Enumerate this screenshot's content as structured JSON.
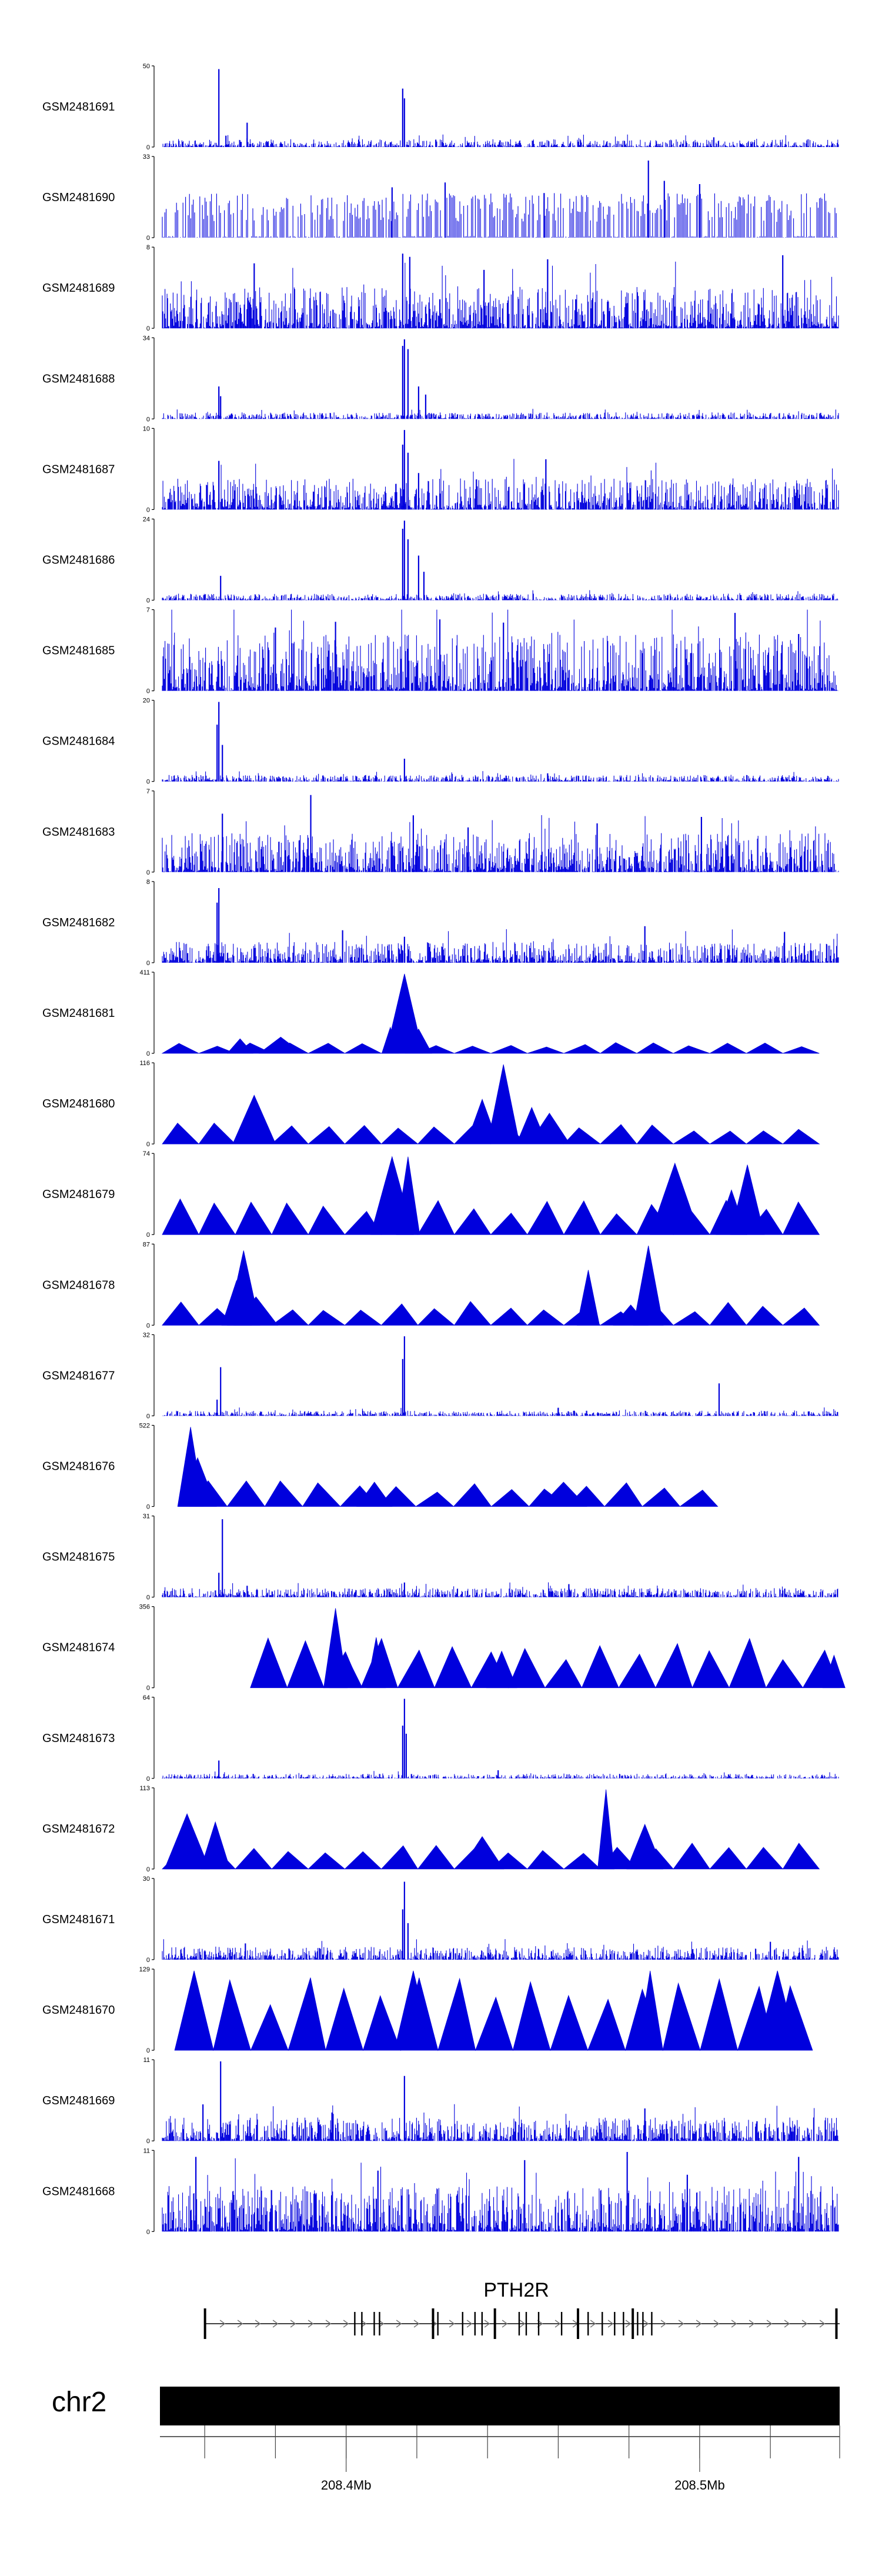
{
  "chart_data": {
    "type": "area",
    "title": "",
    "x_unit": "Mb",
    "xlim": [
      208.3539,
      208.5455
    ],
    "colors": {
      "signal": "#0000dd",
      "axis": "#000000",
      "gene": "#000000",
      "strand": "#777777"
    },
    "tracks": [
      {
        "name": "GSM2481691",
        "ymax": 50,
        "pattern": "dense",
        "noise": 0.06,
        "peaks": [
          [
            208.3699,
            0.96
          ],
          [
            208.3779,
            0.3
          ],
          [
            208.4219,
            0.72
          ],
          [
            208.4224,
            0.6
          ],
          [
            208.3719,
            0.14
          ],
          [
            208.5099,
            0.12
          ]
        ]
      },
      {
        "name": "GSM2481690",
        "ymax": 33,
        "pattern": "sparse",
        "base": 0.55,
        "peaks": [
          [
            208.4914,
            0.95
          ],
          [
            208.4959,
            0.7
          ],
          [
            208.4339,
            0.68
          ],
          [
            208.5059,
            0.66
          ],
          [
            208.4189,
            0.62
          ],
          [
            208.4619,
            0.55
          ]
        ]
      },
      {
        "name": "GSM2481689",
        "ymax": 8,
        "pattern": "dense",
        "noise": 0.32,
        "peaks": [
          [
            208.4219,
            0.92
          ],
          [
            208.4239,
            0.88
          ],
          [
            208.4629,
            0.85
          ],
          [
            208.5294,
            0.9
          ],
          [
            208.3799,
            0.8
          ],
          [
            208.4449,
            0.72
          ]
        ]
      },
      {
        "name": "GSM2481688",
        "ymax": 34,
        "pattern": "dense",
        "noise": 0.05,
        "peaks": [
          [
            208.4224,
            0.98
          ],
          [
            208.4219,
            0.9
          ],
          [
            208.4234,
            0.86
          ],
          [
            208.4264,
            0.4
          ],
          [
            208.4284,
            0.3
          ],
          [
            208.3699,
            0.4
          ],
          [
            208.3704,
            0.28
          ]
        ]
      },
      {
        "name": "GSM2481687",
        "ymax": 10,
        "pattern": "dense",
        "noise": 0.24,
        "peaks": [
          [
            208.4224,
            0.98
          ],
          [
            208.4219,
            0.8
          ],
          [
            208.4234,
            0.7
          ],
          [
            208.4264,
            0.45
          ],
          [
            208.4624,
            0.62
          ],
          [
            208.3699,
            0.6
          ]
        ]
      },
      {
        "name": "GSM2481686",
        "ymax": 24,
        "pattern": "dense",
        "noise": 0.05,
        "peaks": [
          [
            208.4224,
            0.98
          ],
          [
            208.4219,
            0.88
          ],
          [
            208.4234,
            0.75
          ],
          [
            208.4264,
            0.55
          ],
          [
            208.4279,
            0.35
          ],
          [
            208.3704,
            0.3
          ]
        ]
      },
      {
        "name": "GSM2481685",
        "ymax": 7,
        "pattern": "dense",
        "noise": 0.45,
        "peaks": [
          [
            208.5159,
            0.96
          ],
          [
            208.4324,
            0.88
          ],
          [
            208.4029,
            0.85
          ],
          [
            208.4504,
            0.84
          ],
          [
            208.3859,
            0.78
          ],
          [
            208.5339,
            0.7
          ]
        ]
      },
      {
        "name": "GSM2481684",
        "ymax": 20,
        "pattern": "dense",
        "noise": 0.05,
        "peaks": [
          [
            208.3699,
            0.98
          ],
          [
            208.3694,
            0.7
          ],
          [
            208.3709,
            0.45
          ],
          [
            208.4224,
            0.28
          ],
          [
            208.4629,
            0.1
          ]
        ]
      },
      {
        "name": "GSM2481683",
        "ymax": 7,
        "pattern": "dense",
        "noise": 0.3,
        "peaks": [
          [
            208.3959,
            0.95
          ],
          [
            208.3709,
            0.72
          ],
          [
            208.4249,
            0.7
          ],
          [
            208.5064,
            0.68
          ],
          [
            208.4769,
            0.6
          ],
          [
            208.4404,
            0.55
          ]
        ]
      },
      {
        "name": "GSM2481682",
        "ymax": 8,
        "pattern": "dense",
        "noise": 0.16,
        "peaks": [
          [
            208.3699,
            0.92
          ],
          [
            208.3694,
            0.74
          ],
          [
            208.4049,
            0.4
          ],
          [
            208.4904,
            0.45
          ],
          [
            208.5299,
            0.38
          ],
          [
            208.4224,
            0.32
          ]
        ]
      },
      {
        "name": "GSM2481681",
        "ymax": 411,
        "pattern": "triangles",
        "level": 0.14,
        "peaks": [
          [
            208.4224,
            0.98
          ],
          [
            208.4184,
            0.32
          ],
          [
            208.4264,
            0.3
          ],
          [
            208.3759,
            0.18
          ],
          [
            208.3874,
            0.2
          ]
        ]
      },
      {
        "name": "GSM2481680",
        "ymax": 116,
        "pattern": "triangles",
        "level": 0.28,
        "peaks": [
          [
            208.4504,
            0.98
          ],
          [
            208.4444,
            0.55
          ],
          [
            208.4584,
            0.45
          ],
          [
            208.3799,
            0.6
          ],
          [
            208.4634,
            0.38
          ]
        ]
      },
      {
        "name": "GSM2481679",
        "ymax": 74,
        "pattern": "triangles",
        "level": 0.45,
        "peaks": [
          [
            208.4189,
            0.96
          ],
          [
            208.4234,
            0.96
          ],
          [
            208.4989,
            0.88
          ],
          [
            208.5194,
            0.86
          ],
          [
            208.5149,
            0.55
          ]
        ]
      },
      {
        "name": "GSM2481678",
        "ymax": 87,
        "pattern": "triangles",
        "level": 0.3,
        "peaks": [
          [
            208.4914,
            0.98
          ],
          [
            208.3769,
            0.92
          ],
          [
            208.3749,
            0.55
          ],
          [
            208.4744,
            0.68
          ],
          [
            208.3804,
            0.35
          ],
          [
            208.4864,
            0.25
          ]
        ]
      },
      {
        "name": "GSM2481677",
        "ymax": 32,
        "pattern": "dense",
        "noise": 0.04,
        "peaks": [
          [
            208.4224,
            0.98
          ],
          [
            208.4219,
            0.7
          ],
          [
            208.3704,
            0.6
          ],
          [
            208.5114,
            0.4
          ],
          [
            208.3694,
            0.2
          ],
          [
            208.4659,
            0.1
          ]
        ]
      },
      {
        "name": "GSM2481676",
        "ymax": 522,
        "pattern": "triangles",
        "level": 0.32,
        "start": 0.04,
        "end": 0.82,
        "peaks": [
          [
            208.3619,
            0.98
          ],
          [
            208.3639,
            0.6
          ],
          [
            208.4139,
            0.3
          ],
          [
            208.4674,
            0.3
          ]
        ]
      },
      {
        "name": "GSM2481675",
        "ymax": 31,
        "pattern": "dense",
        "noise": 0.07,
        "peaks": [
          [
            208.3709,
            0.96
          ],
          [
            208.3699,
            0.3
          ],
          [
            208.3779,
            0.14
          ],
          [
            208.4224,
            0.18
          ],
          [
            208.4689,
            0.16
          ]
        ]
      },
      {
        "name": "GSM2481674",
        "ymax": 356,
        "pattern": "triangles",
        "level": 0.62,
        "start": 0.13,
        "end": 1.0,
        "peaks": [
          [
            208.4029,
            0.98
          ],
          [
            208.4059,
            0.4
          ],
          [
            208.4144,
            0.62
          ],
          [
            208.4499,
            0.45
          ],
          [
            208.5439,
            0.4
          ]
        ]
      },
      {
        "name": "GSM2481673",
        "ymax": 64,
        "pattern": "dense",
        "noise": 0.035,
        "peaks": [
          [
            208.4224,
            0.98
          ],
          [
            208.4219,
            0.65
          ],
          [
            208.4229,
            0.55
          ],
          [
            208.3699,
            0.22
          ],
          [
            208.4489,
            0.1
          ]
        ]
      },
      {
        "name": "GSM2481672",
        "ymax": 113,
        "pattern": "triangles",
        "level": 0.32,
        "peaks": [
          [
            208.4794,
            0.98
          ],
          [
            208.3609,
            0.68
          ],
          [
            208.3689,
            0.58
          ],
          [
            208.4904,
            0.55
          ],
          [
            208.4444,
            0.4
          ]
        ]
      },
      {
        "name": "GSM2481671",
        "ymax": 30,
        "pattern": "dense",
        "noise": 0.1,
        "peaks": [
          [
            208.4224,
            0.96
          ],
          [
            208.4219,
            0.62
          ],
          [
            208.4234,
            0.45
          ],
          [
            208.3774,
            0.2
          ],
          [
            208.5259,
            0.22
          ]
        ]
      },
      {
        "name": "GSM2481670",
        "ymax": 129,
        "pattern": "triangles",
        "level": 0.98,
        "start": 0.02,
        "end": 0.96,
        "peaks": [
          [
            208.3629,
            0.98
          ],
          [
            208.4249,
            0.98
          ],
          [
            208.4919,
            0.98
          ],
          [
            208.5279,
            0.98
          ]
        ]
      },
      {
        "name": "GSM2481669",
        "ymax": 11,
        "pattern": "dense",
        "noise": 0.18,
        "peaks": [
          [
            208.3704,
            0.98
          ],
          [
            208.4224,
            0.8
          ],
          [
            208.3654,
            0.45
          ],
          [
            208.4904,
            0.4
          ],
          [
            208.4019,
            0.35
          ]
        ]
      },
      {
        "name": "GSM2481668",
        "ymax": 11,
        "pattern": "dense",
        "noise": 0.35,
        "peaks": [
          [
            208.4854,
            0.98
          ],
          [
            208.3634,
            0.92
          ],
          [
            208.4564,
            0.88
          ],
          [
            208.5339,
            0.92
          ],
          [
            208.4149,
            0.75
          ],
          [
            208.5024,
            0.7
          ]
        ]
      }
    ],
    "gene": {
      "name": "PTH2R",
      "start": 208.3659,
      "end": 208.5455,
      "strand": "+",
      "exons": [
        208.3659,
        208.4084,
        208.4104,
        208.4139,
        208.4154,
        208.4304,
        208.4319,
        208.4389,
        208.4424,
        208.4444,
        208.4479,
        208.4549,
        208.4569,
        208.4604,
        208.4669,
        208.4714,
        208.4744,
        208.4784,
        208.4819,
        208.4844,
        208.4869,
        208.4884,
        208.4899,
        208.4924,
        208.5445
      ]
    },
    "chromosome": {
      "name": "chr2",
      "axis_ticks": [
        208.3659,
        208.3859,
        208.4059,
        208.4259,
        208.4459,
        208.4659,
        208.4859,
        208.5059,
        208.5259,
        208.5455
      ],
      "axis_labels": [
        {
          "value": 208.4059,
          "label": "208.4Mb"
        },
        {
          "value": 208.5059,
          "label": "208.5Mb"
        }
      ]
    }
  }
}
